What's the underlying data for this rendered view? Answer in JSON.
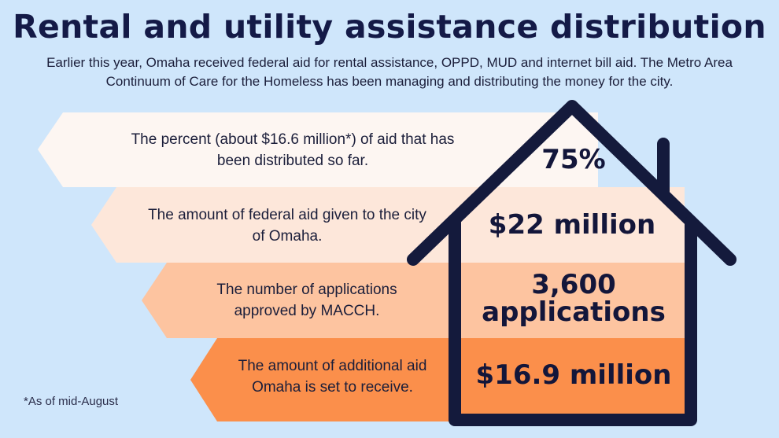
{
  "header": {
    "title": "Rental and utility assistance distribution",
    "subtitle": "Earlier this year, Omaha received federal aid for rental assistance, OPPD, MUD and internet bill aid. The Metro Area Continuum of Care for the Homeless has been managing and distributing the money for the city."
  },
  "rows": [
    {
      "description": "The percent (about $16.6 million*) of aid that has been distributed so far.",
      "value": "75%"
    },
    {
      "description": "The amount of federal aid given to the city of Omaha.",
      "value": "$22 million"
    },
    {
      "description": "The number of applications approved by MACCH.",
      "value": "3,600 applications"
    },
    {
      "description": "The amount of additional aid Omaha is set to receive.",
      "value": "$16.9 million"
    }
  ],
  "footnote": "*As of mid-August",
  "colors": {
    "background": "#cfe6fb",
    "band1": "#fdf6f2",
    "band2": "#fde7da",
    "band3": "#fdc4a0",
    "band4": "#fb8f4b",
    "house_outline": "#141a3c"
  },
  "icons": {
    "house": "house-outline-icon"
  }
}
